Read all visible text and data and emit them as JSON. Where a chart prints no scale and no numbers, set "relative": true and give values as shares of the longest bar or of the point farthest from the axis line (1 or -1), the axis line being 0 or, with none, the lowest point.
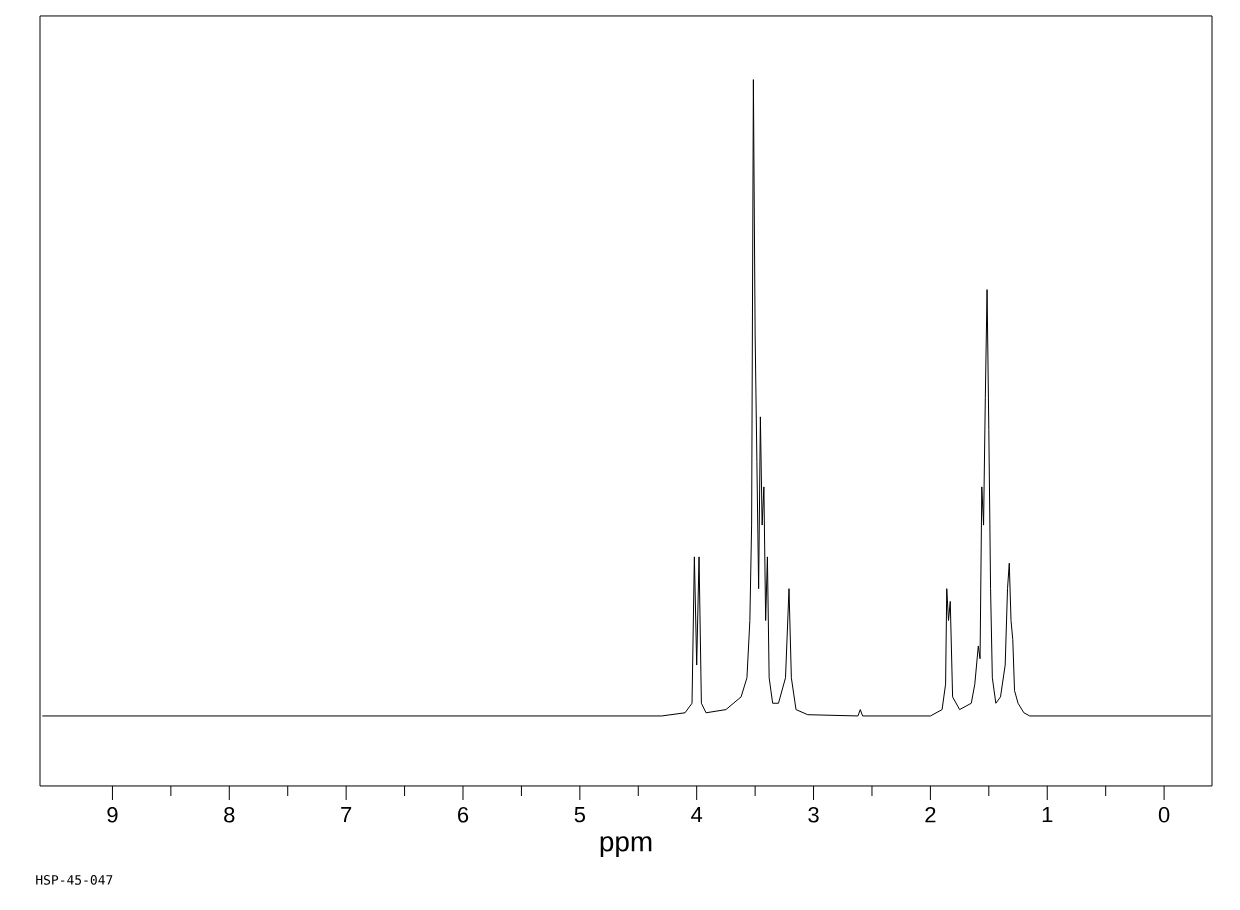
{
  "chart_data": {
    "type": "line",
    "relative": true,
    "xlabel": "ppm",
    "annotations": [
      "HSP-45-047"
    ],
    "xlim": [
      9.62,
      -0.41
    ],
    "xticks": [
      9,
      8,
      7,
      6,
      5,
      4,
      3,
      2,
      1,
      0
    ],
    "tick_labels": "x",
    "x": [
      9.6,
      4.3,
      4.1,
      4.04,
      4.02,
      4.0,
      3.98,
      3.96,
      3.92,
      3.75,
      3.62,
      3.57,
      3.545,
      3.53,
      3.515,
      3.5,
      3.485,
      3.47,
      3.455,
      3.44,
      3.425,
      3.41,
      3.395,
      3.38,
      3.35,
      3.3,
      3.24,
      3.21,
      3.19,
      3.15,
      3.05,
      2.62,
      2.6,
      2.58,
      2.0,
      1.9,
      1.87,
      1.86,
      1.845,
      1.83,
      1.81,
      1.75,
      1.65,
      1.62,
      1.59,
      1.575,
      1.56,
      1.545,
      1.53,
      1.515,
      1.5,
      1.485,
      1.47,
      1.44,
      1.4,
      1.36,
      1.34,
      1.325,
      1.31,
      1.295,
      1.28,
      1.25,
      1.2,
      1.15,
      -0.4
    ],
    "series": [
      {
        "color": "#000000",
        "values": [
          0,
          0,
          0.005,
          0.02,
          0.25,
          0.08,
          0.25,
          0.02,
          0.005,
          0.01,
          0.03,
          0.06,
          0.15,
          0.3,
          1.0,
          0.6,
          0.4,
          0.2,
          0.47,
          0.3,
          0.36,
          0.15,
          0.25,
          0.06,
          0.02,
          0.02,
          0.06,
          0.2,
          0.06,
          0.01,
          0.002,
          0,
          0.01,
          0,
          0,
          0.01,
          0.05,
          0.2,
          0.15,
          0.18,
          0.03,
          0.01,
          0.02,
          0.05,
          0.11,
          0.09,
          0.36,
          0.3,
          0.5,
          0.67,
          0.45,
          0.2,
          0.06,
          0.02,
          0.03,
          0.08,
          0.2,
          0.24,
          0.15,
          0.12,
          0.04,
          0.02,
          0.005,
          0,
          0
        ]
      }
    ]
  }
}
